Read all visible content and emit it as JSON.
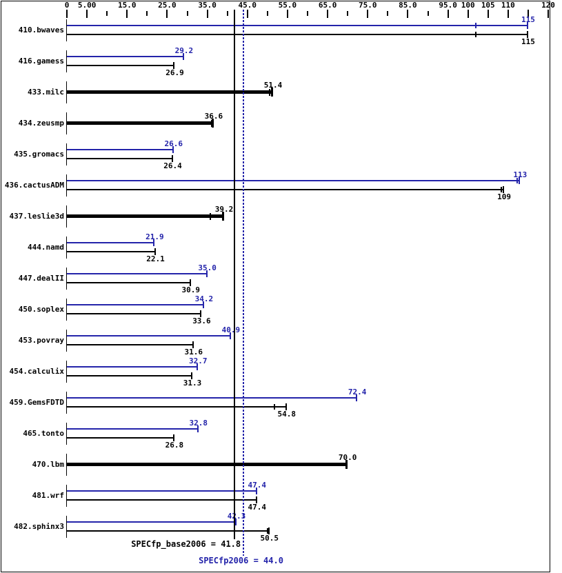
{
  "colors": {
    "peak": "#2323aa",
    "base": "#000000",
    "background": "#ffffff",
    "border": "#000000"
  },
  "chart_data": {
    "type": "bar",
    "orientation": "horizontal",
    "title": "",
    "xlabel": "",
    "ylabel": "",
    "xlim": [
      0,
      120
    ],
    "grid": false,
    "legend": "none",
    "x_axis": {
      "major_ticks": [
        {
          "value": 0,
          "label": "0"
        },
        {
          "value": 5,
          "label": "5.00"
        },
        {
          "value": 15,
          "label": "15.0"
        },
        {
          "value": 25,
          "label": "25.0"
        },
        {
          "value": 35,
          "label": "35.0"
        },
        {
          "value": 45,
          "label": "45.0"
        },
        {
          "value": 55,
          "label": "55.0"
        },
        {
          "value": 65,
          "label": "65.0"
        },
        {
          "value": 75,
          "label": "75.0"
        },
        {
          "value": 85,
          "label": "85.0"
        },
        {
          "value": 95,
          "label": "95.0"
        },
        {
          "value": 100,
          "label": "100"
        },
        {
          "value": 105,
          "label": "105"
        },
        {
          "value": 110,
          "label": "110"
        },
        {
          "value": 115,
          "label": ""
        },
        {
          "value": 120,
          "label": "120"
        }
      ],
      "minor_ticks": [
        10,
        20,
        30,
        40,
        50,
        60,
        70,
        80,
        90
      ]
    },
    "series_names": {
      "peak": "SPECfp2006 (peak, blue)",
      "base": "SPECfp_base2006 (base, black)"
    },
    "benchmarks": [
      {
        "name": "410.bwaves",
        "base_only": false,
        "peak": {
          "value": 115,
          "label": "115",
          "run_ticks": [
            102
          ]
        },
        "base": {
          "value": 115,
          "label": "115",
          "run_ticks": [
            102
          ]
        }
      },
      {
        "name": "416.gamess",
        "base_only": false,
        "peak": {
          "value": 29.2,
          "label": "29.2",
          "run_ticks": []
        },
        "base": {
          "value": 26.9,
          "label": "26.9",
          "run_ticks": []
        }
      },
      {
        "name": "433.milc",
        "base_only": true,
        "peak": null,
        "base": {
          "value": 51.4,
          "label": "51.4",
          "run_ticks": [
            50.6
          ]
        }
      },
      {
        "name": "434.zeusmp",
        "base_only": true,
        "peak": null,
        "base": {
          "value": 36.6,
          "label": "36.6",
          "run_ticks": [
            36.1
          ]
        }
      },
      {
        "name": "435.gromacs",
        "base_only": false,
        "peak": {
          "value": 26.6,
          "label": "26.6",
          "run_ticks": []
        },
        "base": {
          "value": 26.4,
          "label": "26.4",
          "run_ticks": []
        }
      },
      {
        "name": "436.cactusADM",
        "base_only": false,
        "peak": {
          "value": 113,
          "label": "113",
          "run_ticks": [
            112.2
          ]
        },
        "base": {
          "value": 109,
          "label": "109",
          "run_ticks": [
            108.3
          ]
        }
      },
      {
        "name": "437.leslie3d",
        "base_only": true,
        "peak": null,
        "base": {
          "value": 39.2,
          "label": "39.2",
          "run_ticks": [
            35.7
          ]
        }
      },
      {
        "name": "444.namd",
        "base_only": false,
        "peak": {
          "value": 21.9,
          "label": "21.9",
          "run_ticks": []
        },
        "base": {
          "value": 22.1,
          "label": "22.1",
          "run_ticks": []
        }
      },
      {
        "name": "447.dealII",
        "base_only": false,
        "peak": {
          "value": 35.0,
          "label": "35.0",
          "run_ticks": []
        },
        "base": {
          "value": 30.9,
          "label": "30.9",
          "run_ticks": []
        }
      },
      {
        "name": "450.soplex",
        "base_only": false,
        "peak": {
          "value": 34.2,
          "label": "34.2",
          "run_ticks": []
        },
        "base": {
          "value": 33.6,
          "label": "33.6",
          "run_ticks": []
        }
      },
      {
        "name": "453.povray",
        "base_only": false,
        "peak": {
          "value": 40.9,
          "label": "40.9",
          "run_ticks": []
        },
        "base": {
          "value": 31.6,
          "label": "31.6",
          "run_ticks": []
        }
      },
      {
        "name": "454.calculix",
        "base_only": false,
        "peak": {
          "value": 32.7,
          "label": "32.7",
          "run_ticks": []
        },
        "base": {
          "value": 31.3,
          "label": "31.3",
          "run_ticks": []
        }
      },
      {
        "name": "459.GemsFDTD",
        "base_only": false,
        "peak": {
          "value": 72.4,
          "label": "72.4",
          "run_ticks": []
        },
        "base": {
          "value": 54.8,
          "label": "54.8",
          "run_ticks": [
            51.8
          ]
        }
      },
      {
        "name": "465.tonto",
        "base_only": false,
        "peak": {
          "value": 32.8,
          "label": "32.8",
          "run_ticks": []
        },
        "base": {
          "value": 26.8,
          "label": "26.8",
          "run_ticks": []
        }
      },
      {
        "name": "470.lbm",
        "base_only": true,
        "peak": null,
        "base": {
          "value": 70.0,
          "label": "70.0",
          "run_ticks": []
        }
      },
      {
        "name": "481.wrf",
        "base_only": false,
        "peak": {
          "value": 47.4,
          "label": "47.4",
          "run_ticks": []
        },
        "base": {
          "value": 47.4,
          "label": "47.4",
          "run_ticks": []
        }
      },
      {
        "name": "482.sphinx3",
        "base_only": false,
        "peak": {
          "value": 42.3,
          "label": "42.3",
          "run_ticks": []
        },
        "base": {
          "value": 50.5,
          "label": "50.5",
          "run_ticks": [
            50.0
          ]
        }
      }
    ],
    "reference_lines": [
      {
        "id": "base",
        "value": 41.8,
        "label": "SPECfp_base2006 = 41.8",
        "style": "solid",
        "color": "#000000"
      },
      {
        "id": "peak",
        "value": 44.0,
        "label": "SPECfp2006 = 44.0",
        "style": "dotted",
        "color": "#2323aa"
      }
    ]
  }
}
